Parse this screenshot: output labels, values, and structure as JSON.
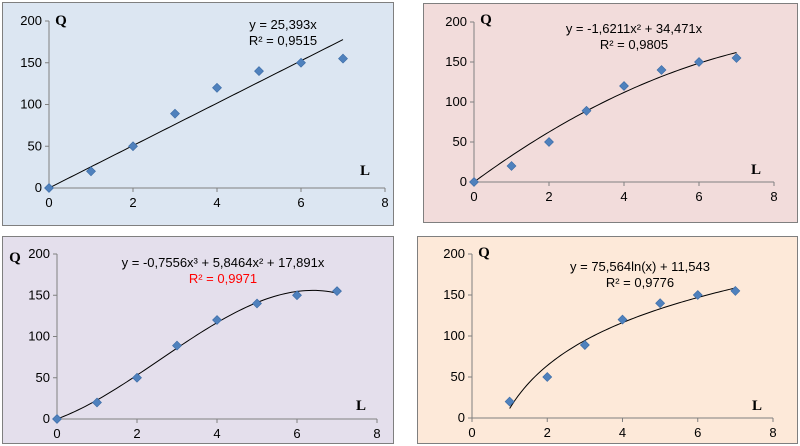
{
  "chart_data": [
    {
      "type": "scatter",
      "ylabel": "Q",
      "xlabel": "L",
      "xlim": [
        0,
        8
      ],
      "ylim": [
        0,
        200
      ],
      "xticks": [
        "0",
        "2",
        "4",
        "6",
        "8"
      ],
      "yticks": [
        "0",
        "50",
        "100",
        "150",
        "200"
      ],
      "points": {
        "x": [
          0,
          1,
          2,
          3,
          4,
          5,
          6,
          7
        ],
        "y": [
          0,
          20,
          50,
          89,
          120,
          140,
          150,
          155
        ]
      },
      "trendline": {
        "kind": "linear",
        "coef": [
          25.393
        ],
        "domain": [
          0,
          7
        ]
      },
      "equation": "y = 25,393x",
      "r2": "R² = 0,9515",
      "r2_color": "#000000",
      "background": "#dce6f2",
      "marker_color": "#4f81bd"
    },
    {
      "type": "scatter",
      "ylabel": "Q",
      "xlabel": "L",
      "xlim": [
        0,
        8
      ],
      "ylim": [
        0,
        200
      ],
      "xticks": [
        "0",
        "2",
        "4",
        "6",
        "8"
      ],
      "yticks": [
        "0",
        "50",
        "100",
        "150",
        "200"
      ],
      "points": {
        "x": [
          0,
          1,
          2,
          3,
          4,
          5,
          6,
          7
        ],
        "y": [
          0,
          20,
          50,
          89,
          120,
          140,
          150,
          155
        ]
      },
      "trendline": {
        "kind": "poly2",
        "coef": [
          -1.6211,
          34.471
        ],
        "domain": [
          0,
          7
        ]
      },
      "equation": "y = -1,6211x² + 34,471x",
      "r2": "R² = 0,9805",
      "r2_color": "#000000",
      "background": "#f2dcdb",
      "marker_color": "#4f81bd"
    },
    {
      "type": "scatter",
      "ylabel": "Q",
      "xlabel": "L",
      "xlim": [
        0,
        8
      ],
      "ylim": [
        0,
        200
      ],
      "xticks": [
        "0",
        "2",
        "4",
        "6",
        "8"
      ],
      "yticks": [
        "0",
        "50",
        "100",
        "150",
        "200"
      ],
      "points": {
        "x": [
          0,
          1,
          2,
          3,
          4,
          5,
          6,
          7
        ],
        "y": [
          0,
          20,
          50,
          89,
          120,
          140,
          150,
          155
        ]
      },
      "trendline": {
        "kind": "poly3",
        "coef": [
          -0.7556,
          5.8464,
          17.891
        ],
        "domain": [
          0,
          7
        ]
      },
      "equation": "y = -0,7556x³ + 5,8464x² + 17,891x",
      "r2": "R² = 0,9971",
      "r2_color": "#ff0000",
      "background": "#e4dfec",
      "marker_color": "#4f81bd"
    },
    {
      "type": "scatter",
      "ylabel": "Q",
      "xlabel": "L",
      "xlim": [
        0,
        8
      ],
      "ylim": [
        0,
        200
      ],
      "xticks": [
        "0",
        "2",
        "4",
        "6",
        "8"
      ],
      "yticks": [
        "0",
        "50",
        "100",
        "150",
        "200"
      ],
      "points": {
        "x": [
          1,
          2,
          3,
          4,
          5,
          6,
          7
        ],
        "y": [
          20,
          50,
          89,
          120,
          140,
          150,
          155
        ]
      },
      "trendline": {
        "kind": "log",
        "coef": [
          75.564,
          11.543
        ],
        "domain": [
          1,
          7
        ]
      },
      "equation": "y = 75,564ln(x) + 11,543",
      "r2": "R² = 0,9776",
      "r2_color": "#000000",
      "background": "#fde9d9",
      "marker_color": "#4f81bd"
    }
  ]
}
